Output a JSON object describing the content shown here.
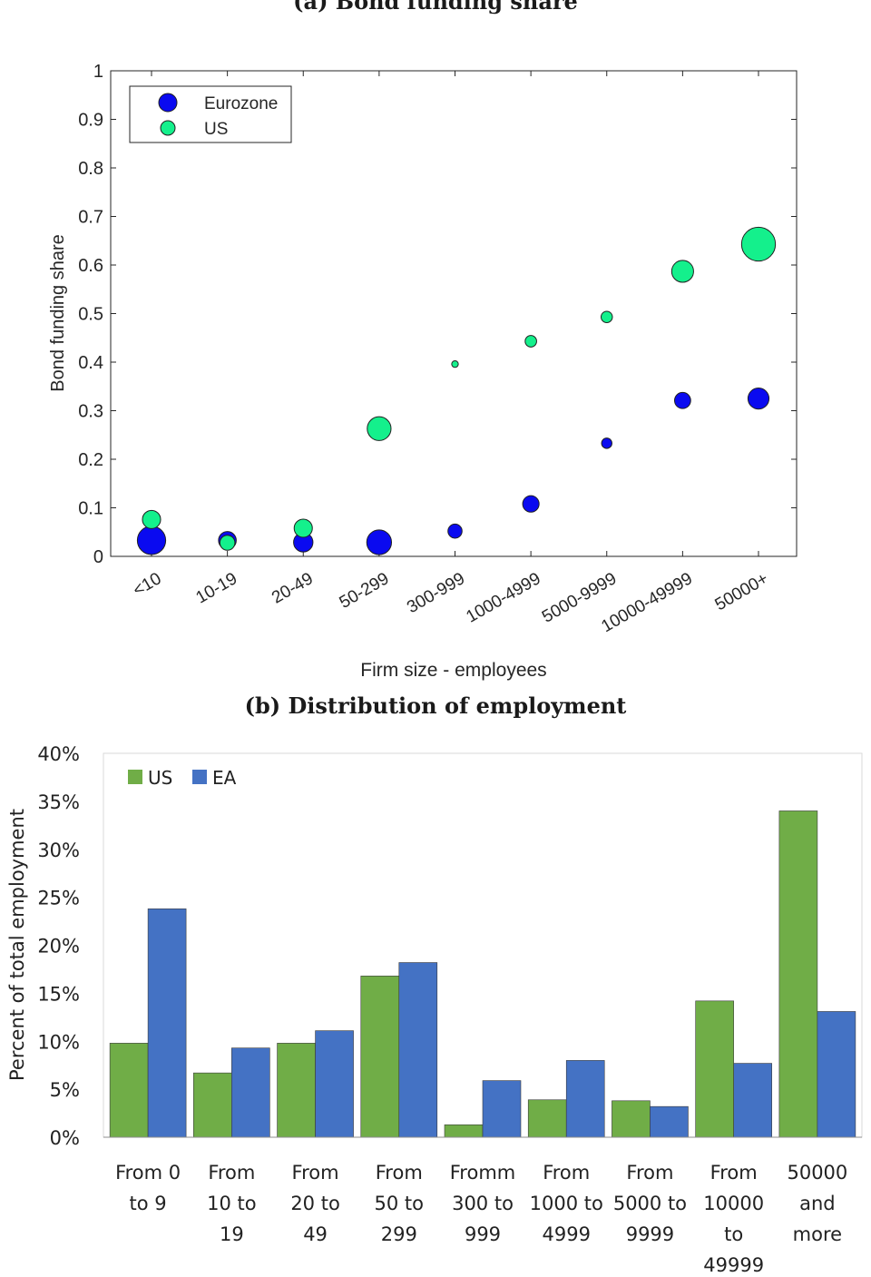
{
  "figure": {
    "top_caption": "(a) Bond funding share",
    "bottom_caption": "(b) Distribution of employment"
  },
  "chart_data": [
    {
      "type": "scatter",
      "title": "(a) Bond funding share",
      "xlabel": "Firm size - employees",
      "ylabel": "Bond funding share",
      "ylim": [
        0,
        1
      ],
      "yticks": [
        "0",
        "0.1",
        "0.2",
        "0.3",
        "0.4",
        "0.5",
        "0.6",
        "0.7",
        "0.8",
        "0.9",
        "1"
      ],
      "categories": [
        "<10",
        "10-19",
        "20-49",
        "50-299",
        "300-999",
        "1000-4999",
        "5000-9999",
        "10000-49999",
        "50000+"
      ],
      "legend_position": "top-left",
      "bubble_size_encodes": "share of employment",
      "series": [
        {
          "name": "Eurozone",
          "color": "#0a0af0",
          "values": [
            0.033,
            0.033,
            0.029,
            0.029,
            0.052,
            0.108,
            0.233,
            0.321,
            0.325
          ],
          "employment_share": [
            23.8,
            9.3,
            11.1,
            18.2,
            5.9,
            8.0,
            3.2,
            7.7,
            13.1
          ]
        },
        {
          "name": "US",
          "color": "#14f08c",
          "values": [
            0.076,
            0.028,
            0.058,
            0.263,
            0.396,
            0.443,
            0.493,
            0.587,
            0.643
          ],
          "employment_share": [
            9.8,
            6.7,
            9.8,
            16.8,
            1.3,
            3.9,
            3.8,
            14.2,
            34.0
          ]
        }
      ]
    },
    {
      "type": "bar",
      "title": "(b) Distribution of employment",
      "xlabel": "",
      "ylabel": "Percent of total employment",
      "ylim": [
        0,
        40
      ],
      "yticks": [
        "0%",
        "5%",
        "10%",
        "15%",
        "20%",
        "25%",
        "30%",
        "35%",
        "40%"
      ],
      "categories": [
        [
          "From 0",
          "to 9"
        ],
        [
          "From",
          "10 to",
          "19"
        ],
        [
          "From",
          "20 to",
          "49"
        ],
        [
          "From",
          "50 to",
          "299"
        ],
        [
          "Fromm",
          "300 to",
          "999"
        ],
        [
          "From",
          "1000 to",
          "4999"
        ],
        [
          "From",
          "5000 to",
          "9999"
        ],
        [
          "From",
          "10000",
          "to",
          "49999"
        ],
        [
          "50000",
          "and",
          "more"
        ]
      ],
      "legend_position": "top-left",
      "series": [
        {
          "name": "US",
          "color": "#70ad47",
          "values": [
            9.8,
            6.7,
            9.8,
            16.8,
            1.3,
            3.9,
            3.8,
            14.2,
            34.0
          ]
        },
        {
          "name": "EA",
          "color": "#4472c4",
          "values": [
            23.8,
            9.3,
            11.1,
            18.2,
            5.9,
            8.0,
            3.2,
            7.7,
            13.1
          ]
        }
      ]
    }
  ]
}
